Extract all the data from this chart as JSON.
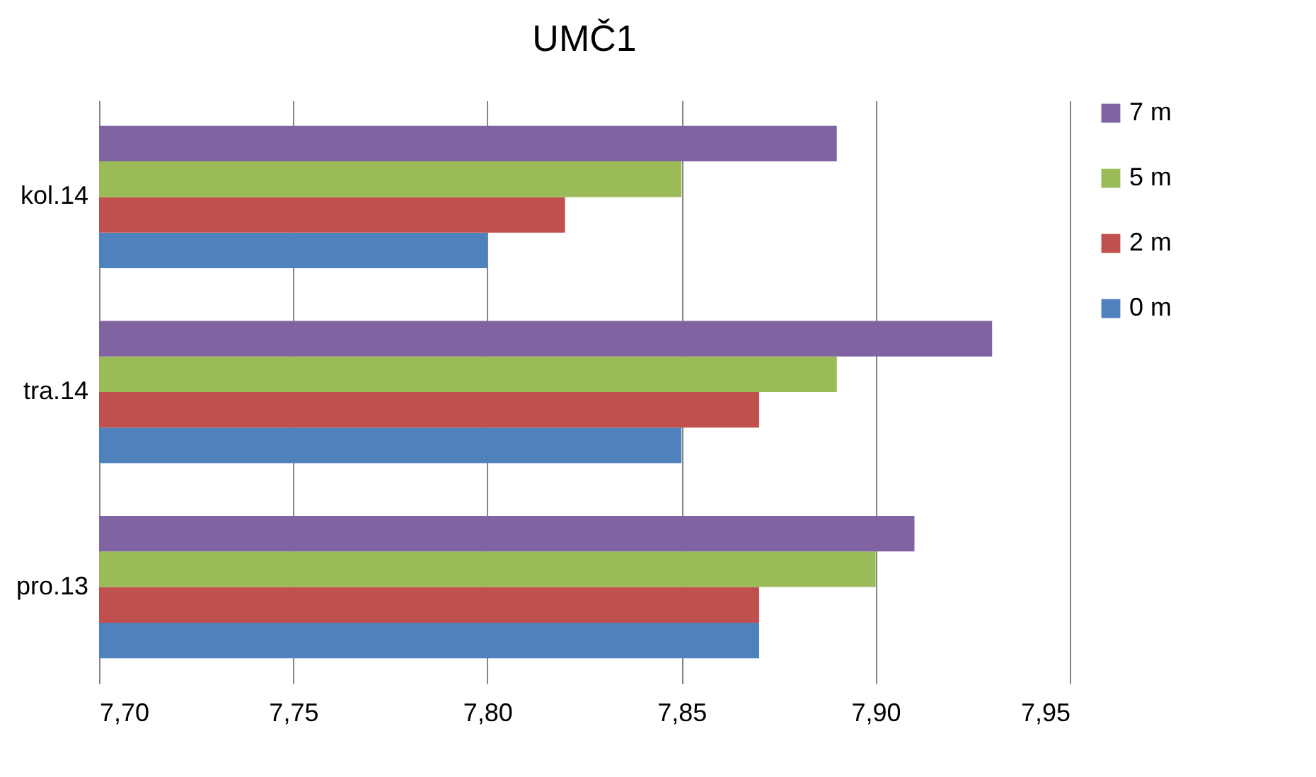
{
  "chart_data": {
    "type": "bar",
    "orientation": "horizontal",
    "title": "UMČ1",
    "categories": [
      "kol.14",
      "tra.14",
      "pro.13"
    ],
    "series": [
      {
        "name": "0 m",
        "color": "#4f81bd",
        "values": [
          7.8,
          7.85,
          7.87
        ]
      },
      {
        "name": "2 m",
        "color": "#c0504d",
        "values": [
          7.82,
          7.87,
          7.87
        ]
      },
      {
        "name": "5 m",
        "color": "#9bbb59",
        "values": [
          7.85,
          7.89,
          7.9
        ]
      },
      {
        "name": "7 m",
        "color": "#8064a2",
        "values": [
          7.89,
          7.93,
          7.91
        ]
      }
    ],
    "xlim": [
      7.7,
      7.95
    ],
    "xticks": [
      {
        "value": 7.7,
        "label": "7,70"
      },
      {
        "value": 7.75,
        "label": "7,75"
      },
      {
        "value": 7.8,
        "label": "7,80"
      },
      {
        "value": 7.85,
        "label": "7,85"
      },
      {
        "value": 7.9,
        "label": "7,90"
      },
      {
        "value": 7.95,
        "label": "7,95"
      }
    ],
    "grid": "x",
    "legend": "right"
  }
}
